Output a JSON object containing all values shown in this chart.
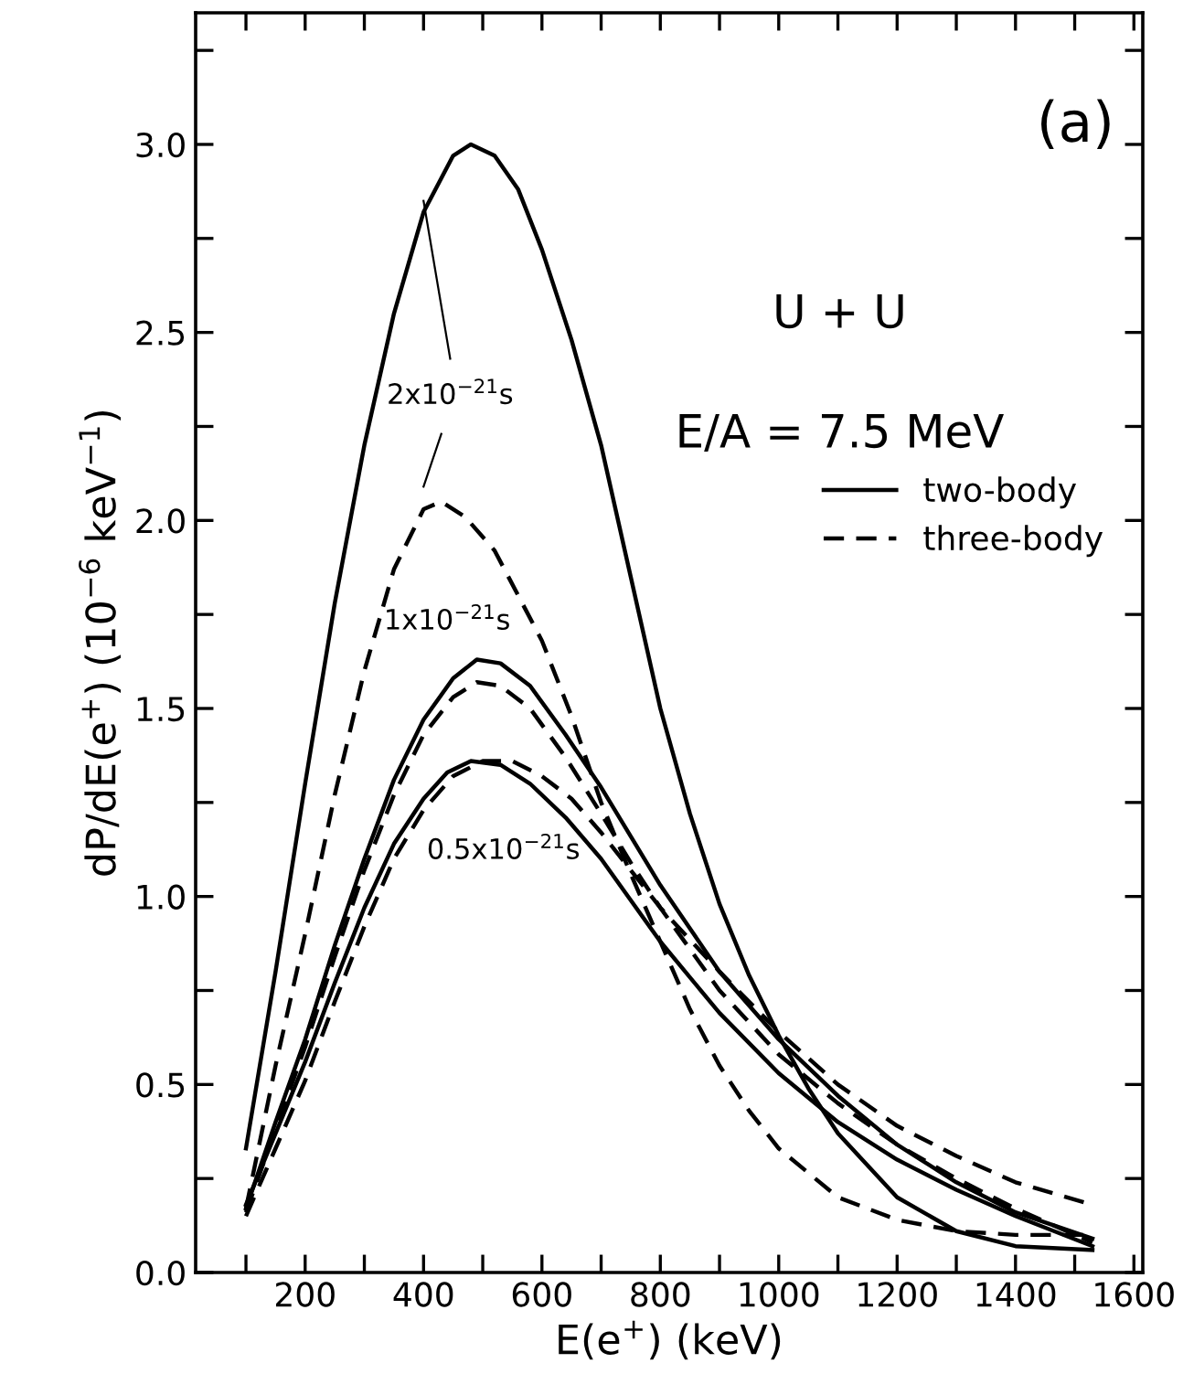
{
  "chart_data": {
    "type": "line",
    "xlabel": "E(e$^{+}$) (keV)",
    "ylabel": "dP/dE(e$^{+}$) (10$^{−6}$ keV$^{−1}$)",
    "xlim": [
      15,
      1615
    ],
    "ylim": [
      0,
      3.35
    ],
    "xticks": [
      {
        "value": 100,
        "label": null
      },
      {
        "value": 200,
        "label": "200"
      },
      {
        "value": 300,
        "label": null
      },
      {
        "value": 400,
        "label": "400"
      },
      {
        "value": 500,
        "label": null
      },
      {
        "value": 600,
        "label": "600"
      },
      {
        "value": 700,
        "label": null
      },
      {
        "value": 800,
        "label": "800"
      },
      {
        "value": 900,
        "label": null
      },
      {
        "value": 1000,
        "label": "1000"
      },
      {
        "value": 1100,
        "label": null
      },
      {
        "value": 1200,
        "label": "1200"
      },
      {
        "value": 1300,
        "label": null
      },
      {
        "value": 1400,
        "label": "1400"
      },
      {
        "value": 1500,
        "label": null
      },
      {
        "value": 1600,
        "label": "1600"
      }
    ],
    "yticks": [
      {
        "value": 0,
        "label": "0.0"
      },
      {
        "value": 0.25,
        "label": null
      },
      {
        "value": 0.5,
        "label": "0.5"
      },
      {
        "value": 0.75,
        "label": null
      },
      {
        "value": 1.0,
        "label": "1.0"
      },
      {
        "value": 1.25,
        "label": null
      },
      {
        "value": 1.5,
        "label": "1.5"
      },
      {
        "value": 1.75,
        "label": null
      },
      {
        "value": 2.0,
        "label": "2.0"
      },
      {
        "value": 2.25,
        "label": null
      },
      {
        "value": 2.5,
        "label": "2.5"
      },
      {
        "value": 2.75,
        "label": null
      },
      {
        "value": 3.0,
        "label": "3.0"
      },
      {
        "value": 3.25,
        "label": null
      }
    ],
    "grid": false,
    "legend": "right",
    "marker": "none",
    "annotations": [
      "(a)",
      "U + U",
      "E/A = 7.5 MeV",
      {
        "text": "2x10$^{−21}$s",
        "x": 400,
        "y": 2.85
      },
      "1x10$^{−21}$s",
      "0.5x10$^{−21}$s"
    ],
    "series": [
      {
        "name": "two-body",
        "color": "#000000",
        "line_style": "solid",
        "x": [
          100,
          150,
          200,
          250,
          300,
          350,
          400,
          450,
          480,
          520,
          560,
          600,
          650,
          700,
          750,
          800,
          850,
          900,
          950,
          1000,
          1050,
          1100,
          1200,
          1300,
          1400,
          1530
        ],
        "values": [
          0.33,
          0.8,
          1.3,
          1.78,
          2.2,
          2.55,
          2.82,
          2.97,
          3.0,
          2.97,
          2.88,
          2.72,
          2.48,
          2.2,
          1.85,
          1.5,
          1.22,
          0.98,
          0.79,
          0.63,
          0.49,
          0.37,
          0.2,
          0.11,
          0.07,
          0.06
        ]
      },
      {
        "name": "three-body",
        "color": "#000000",
        "line_style": "dashed",
        "x": [
          100,
          150,
          200,
          250,
          300,
          350,
          400,
          430,
          470,
          520,
          600,
          650,
          700,
          750,
          800,
          850,
          900,
          950,
          1000,
          1100,
          1200,
          1300,
          1400,
          1530
        ],
        "values": [
          0.17,
          0.55,
          0.9,
          1.27,
          1.6,
          1.87,
          2.03,
          2.05,
          2.01,
          1.92,
          1.68,
          1.48,
          1.25,
          1.06,
          0.88,
          0.7,
          0.55,
          0.43,
          0.33,
          0.2,
          0.14,
          0.11,
          0.1,
          0.1
        ]
      },
      {
        "color": "#000000",
        "line_style": "solid",
        "x": [
          100,
          150,
          200,
          250,
          300,
          350,
          400,
          450,
          490,
          530,
          580,
          640,
          700,
          750,
          800,
          900,
          1000,
          1100,
          1200,
          1300,
          1400,
          1530
        ],
        "values": [
          0.17,
          0.4,
          0.62,
          0.87,
          1.1,
          1.31,
          1.47,
          1.58,
          1.63,
          1.62,
          1.56,
          1.43,
          1.29,
          1.16,
          1.03,
          0.8,
          0.62,
          0.47,
          0.34,
          0.24,
          0.16,
          0.09
        ]
      },
      {
        "color": "#000000",
        "line_style": "dashed",
        "x": [
          100,
          150,
          200,
          250,
          300,
          350,
          400,
          450,
          490,
          530,
          580,
          640,
          700,
          750,
          800,
          900,
          1000,
          1100,
          1200,
          1300,
          1400,
          1530
        ],
        "values": [
          0.16,
          0.38,
          0.6,
          0.84,
          1.07,
          1.27,
          1.43,
          1.53,
          1.57,
          1.56,
          1.5,
          1.37,
          1.22,
          1.09,
          0.97,
          0.75,
          0.58,
          0.45,
          0.34,
          0.25,
          0.17,
          0.08
        ]
      },
      {
        "color": "#000000",
        "line_style": "solid",
        "x": [
          100,
          150,
          200,
          250,
          300,
          350,
          400,
          440,
          480,
          530,
          580,
          640,
          700,
          750,
          800,
          900,
          1000,
          1100,
          1200,
          1300,
          1400,
          1530
        ],
        "values": [
          0.18,
          0.37,
          0.56,
          0.77,
          0.97,
          1.14,
          1.26,
          1.33,
          1.36,
          1.35,
          1.3,
          1.21,
          1.1,
          0.99,
          0.88,
          0.69,
          0.53,
          0.4,
          0.3,
          0.22,
          0.15,
          0.07
        ]
      },
      {
        "color": "#000000",
        "line_style": "dashed",
        "x": [
          100,
          150,
          200,
          250,
          300,
          350,
          400,
          450,
          500,
          550,
          600,
          650,
          700,
          750,
          800,
          900,
          1000,
          1100,
          1200,
          1300,
          1400,
          1530
        ],
        "values": [
          0.15,
          0.33,
          0.51,
          0.72,
          0.92,
          1.1,
          1.23,
          1.32,
          1.36,
          1.36,
          1.32,
          1.26,
          1.17,
          1.07,
          0.97,
          0.8,
          0.64,
          0.5,
          0.39,
          0.31,
          0.24,
          0.18
        ]
      }
    ]
  }
}
